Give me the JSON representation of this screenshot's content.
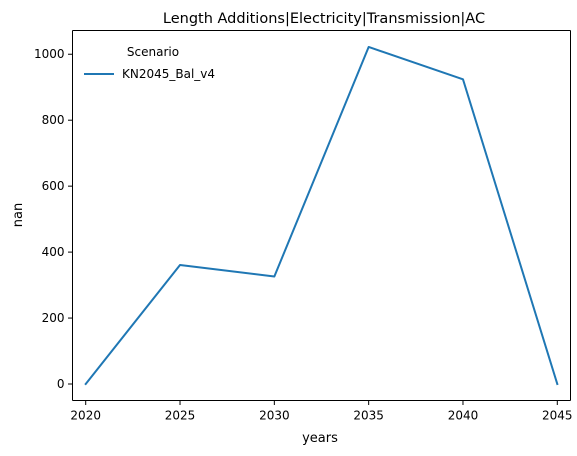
{
  "chart_data": {
    "type": "line",
    "title": "Length Additions|Electricity|Transmission|AC",
    "xlabel": "years",
    "ylabel": "nan",
    "x": [
      2020,
      2025,
      2030,
      2035,
      2040,
      2045
    ],
    "xlim": [
      2019.3,
      2045.7
    ],
    "ylim": [
      -50,
      1072
    ],
    "xticks": [
      2020,
      2025,
      2030,
      2035,
      2040,
      2045
    ],
    "yticks": [
      0,
      200,
      400,
      600,
      800,
      1000
    ],
    "grid": false,
    "legend": {
      "title": "Scenario",
      "placement": "top-left"
    },
    "series": [
      {
        "name": "KN2045_Bal_v4",
        "color": "#1f77b4",
        "values": [
          0,
          361,
          326,
          1022,
          924,
          0
        ]
      }
    ]
  }
}
